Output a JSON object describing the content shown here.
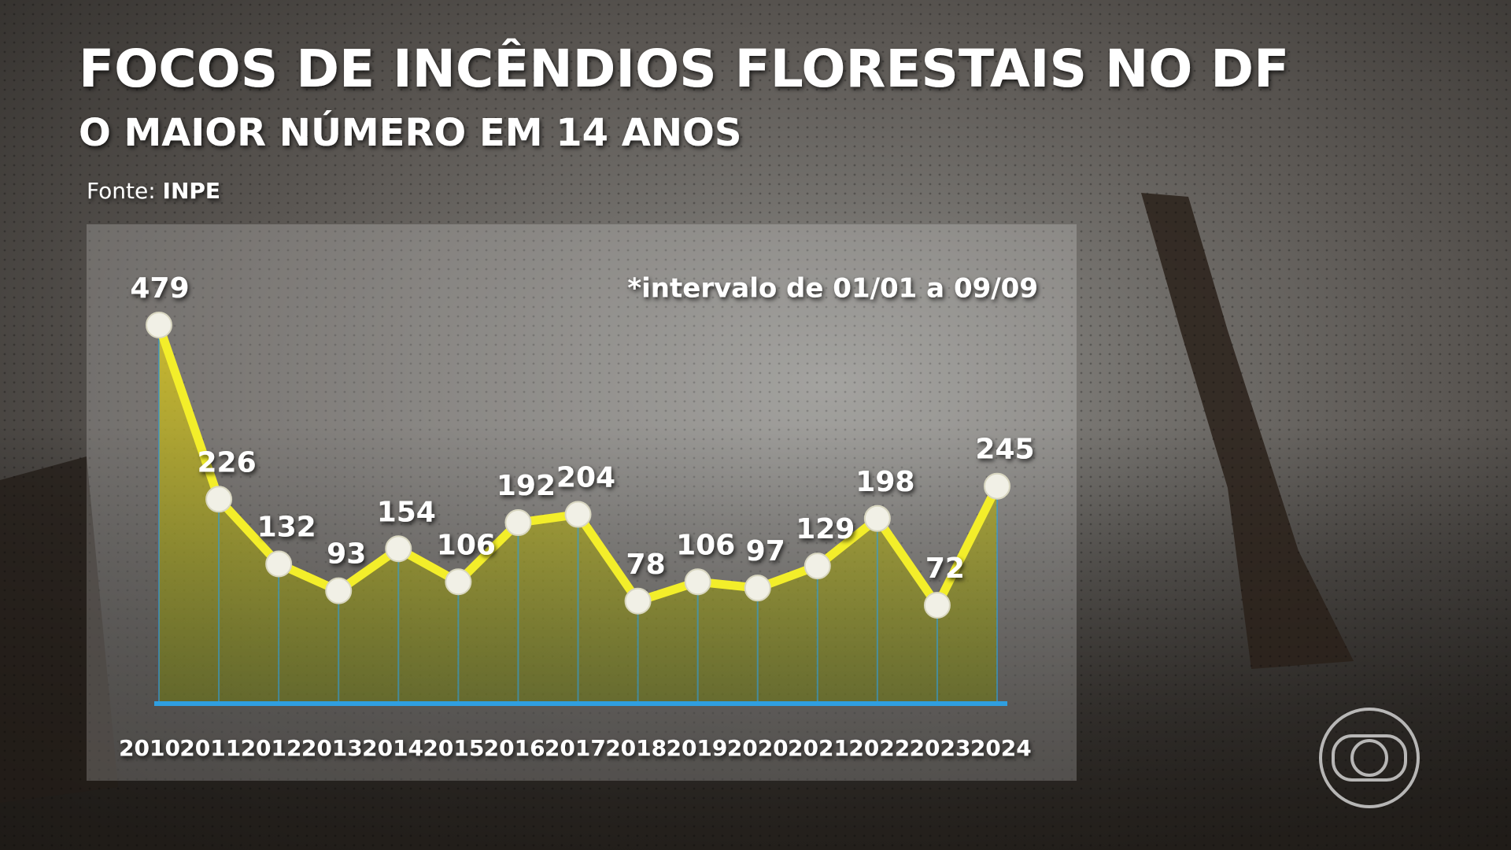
{
  "chart_data": {
    "type": "line",
    "title": "FOCOS DE INCÊNDIOS FLORESTAIS NO DF",
    "subtitle": "O MAIOR NÚMERO EM 14 ANOS",
    "source_label": "Fonte:",
    "source": "INPE",
    "note": "*intervalo de 01/01 a 09/09",
    "categories": [
      "2010",
      "2011",
      "2012",
      "2013",
      "2014",
      "2015",
      "2016",
      "2017",
      "2018",
      "2019",
      "2020",
      "2021",
      "2022",
      "2023",
      "2024"
    ],
    "values": [
      479,
      226,
      132,
      93,
      154,
      106,
      192,
      204,
      78,
      106,
      97,
      129,
      198,
      72,
      245
    ],
    "color": "#f3ee2a",
    "axis_color": "#2f9fe0"
  }
}
